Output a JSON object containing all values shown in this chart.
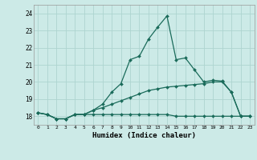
{
  "xlabel": "Humidex (Indice chaleur)",
  "background_color": "#cceae7",
  "grid_color": "#aed4d0",
  "line_color": "#1a6b5a",
  "xlim": [
    -0.5,
    23.5
  ],
  "ylim": [
    17.5,
    24.5
  ],
  "yticks": [
    18,
    19,
    20,
    21,
    22,
    23,
    24
  ],
  "xticks": [
    0,
    1,
    2,
    3,
    4,
    5,
    6,
    7,
    8,
    9,
    10,
    11,
    12,
    13,
    14,
    15,
    16,
    17,
    18,
    19,
    20,
    21,
    22,
    23
  ],
  "line1_x": [
    0,
    1,
    2,
    3,
    4,
    5,
    6,
    7,
    8,
    9,
    10,
    11,
    12,
    13,
    14,
    15,
    16,
    17,
    18,
    19,
    20,
    21,
    22,
    23
  ],
  "line1_y": [
    18.2,
    18.1,
    17.85,
    17.85,
    18.1,
    18.1,
    18.1,
    18.1,
    18.1,
    18.1,
    18.1,
    18.1,
    18.1,
    18.1,
    18.1,
    18.0,
    18.0,
    18.0,
    18.0,
    18.0,
    18.0,
    18.0,
    18.0,
    18.0
  ],
  "line2_x": [
    0,
    1,
    2,
    3,
    4,
    5,
    6,
    7,
    8,
    9,
    10,
    11,
    12,
    13,
    14,
    15,
    16,
    17,
    18,
    19,
    20,
    21,
    22,
    23
  ],
  "line2_y": [
    18.2,
    18.1,
    17.85,
    17.85,
    18.1,
    18.1,
    18.35,
    18.5,
    18.7,
    18.9,
    19.1,
    19.3,
    19.5,
    19.6,
    19.7,
    19.75,
    19.8,
    19.85,
    19.9,
    20.0,
    20.0,
    19.4,
    18.0,
    18.0
  ],
  "line3_x": [
    0,
    1,
    2,
    3,
    4,
    5,
    6,
    7,
    8,
    9,
    10,
    11,
    12,
    13,
    14,
    15,
    16,
    17,
    18,
    19,
    20,
    21,
    22,
    23
  ],
  "line3_y": [
    18.2,
    18.1,
    17.85,
    17.85,
    18.1,
    18.1,
    18.35,
    18.7,
    19.4,
    19.9,
    21.3,
    21.5,
    22.5,
    23.2,
    23.85,
    21.3,
    21.4,
    20.7,
    20.0,
    20.1,
    20.05,
    19.4,
    18.0,
    18.0
  ]
}
